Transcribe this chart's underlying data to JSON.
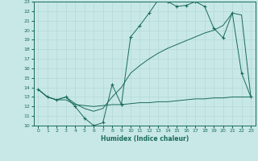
{
  "xlabel": "Humidex (Indice chaleur)",
  "bg_color": "#c8e8e8",
  "line_color": "#1a6b5a",
  "grid_color": "#b0d4d4",
  "xlim": [
    -0.5,
    23.5
  ],
  "ylim": [
    10,
    23
  ],
  "xticks": [
    0,
    1,
    2,
    3,
    4,
    5,
    6,
    7,
    8,
    9,
    10,
    11,
    12,
    13,
    14,
    15,
    16,
    17,
    18,
    19,
    20,
    21,
    22,
    23
  ],
  "yticks": [
    10,
    11,
    12,
    13,
    14,
    15,
    16,
    17,
    18,
    19,
    20,
    21,
    22,
    23
  ],
  "line1_x": [
    0,
    1,
    2,
    3,
    4,
    5,
    6,
    7,
    8,
    9,
    10,
    11,
    12,
    13,
    14,
    15,
    16,
    17,
    18,
    19,
    20,
    21,
    22,
    23
  ],
  "line1_y": [
    13.8,
    13.0,
    12.7,
    13.0,
    12.0,
    10.8,
    10.0,
    10.3,
    14.3,
    12.2,
    19.3,
    20.5,
    21.8,
    23.2,
    23.0,
    22.5,
    22.6,
    23.0,
    22.5,
    20.2,
    19.2,
    21.8,
    15.5,
    13.0
  ],
  "line2_x": [
    0,
    1,
    2,
    3,
    4,
    5,
    6,
    7,
    8,
    9,
    10,
    11,
    12,
    13,
    14,
    15,
    16,
    17,
    18,
    19,
    20,
    21,
    22,
    23
  ],
  "line2_y": [
    13.8,
    13.0,
    12.7,
    13.0,
    12.3,
    11.8,
    11.5,
    11.8,
    13.0,
    14.0,
    15.5,
    16.3,
    17.0,
    17.6,
    18.1,
    18.5,
    18.9,
    19.3,
    19.7,
    20.0,
    20.5,
    21.8,
    21.6,
    13.0
  ],
  "line3_x": [
    0,
    1,
    2,
    3,
    4,
    5,
    6,
    7,
    8,
    9,
    10,
    11,
    12,
    13,
    14,
    15,
    16,
    17,
    18,
    19,
    20,
    21,
    22,
    23
  ],
  "line3_y": [
    13.8,
    13.0,
    12.7,
    12.7,
    12.2,
    12.1,
    12.0,
    12.1,
    12.2,
    12.2,
    12.3,
    12.4,
    12.4,
    12.5,
    12.5,
    12.6,
    12.7,
    12.8,
    12.8,
    12.9,
    12.9,
    13.0,
    13.0,
    13.0
  ]
}
